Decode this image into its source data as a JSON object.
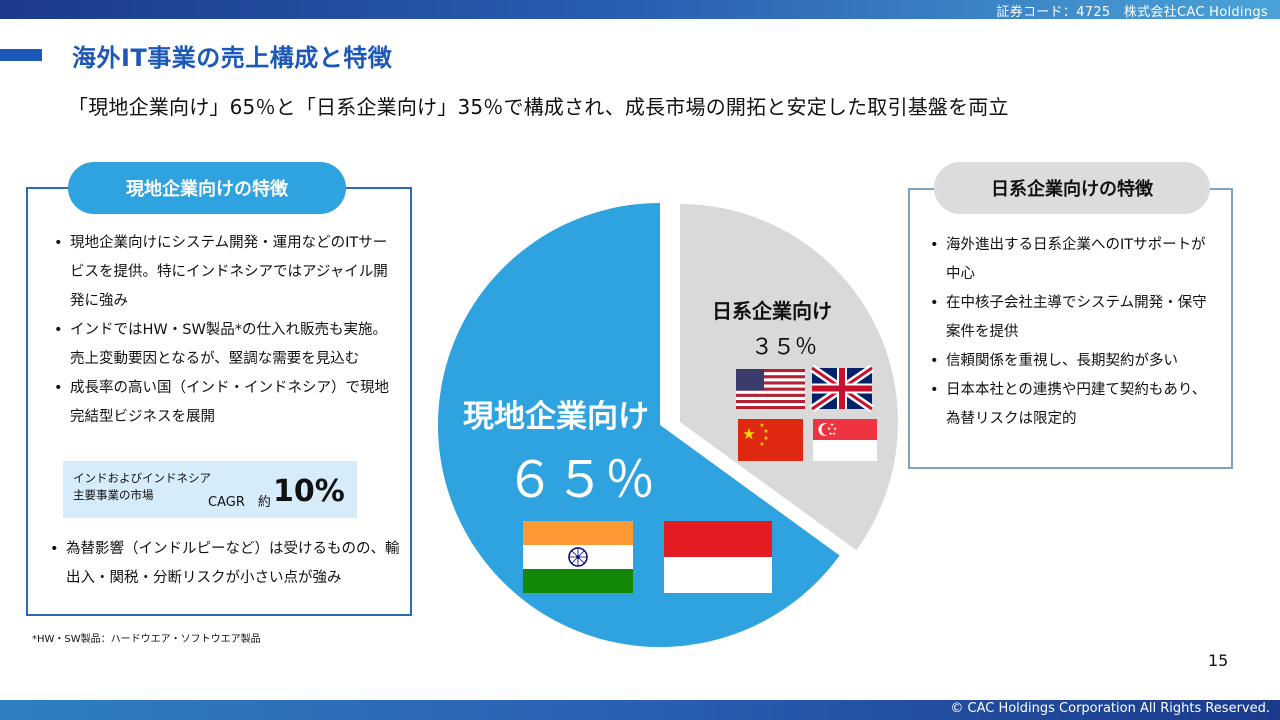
{
  "header": {
    "stock_code": "証券コード：4725　株式会社CAC Holdings"
  },
  "slide": {
    "title": "海外IT事業の売上構成と特徴",
    "subtitle": "「現地企業向け」65％と「日系企業向け」35％で構成され、成長市場の開拓と安定した取引基盤を両立"
  },
  "left_panel": {
    "heading": "現地企業向けの特徴",
    "bullets": [
      "現地企業向けにシステム開発・運用などのITサービスを提供。特にインドネシアではアジャイル開発に強み",
      "インドではHW・SW製品*の仕入れ販売も実施。売上変動要因となるが、堅調な需要を見込む",
      "成長率の高い国（インド・インドネシア）で現地完結型ビジネスを展開"
    ],
    "cagr": {
      "label_line1": "インドおよびインドネシア",
      "label_line2": "主要事業の市場",
      "word": "CAGR　約",
      "value": "10%"
    },
    "bullets_after": [
      "為替影響（インドルピーなど）は受けるものの、輸出入・関税・分断リスクが小さい点が強み"
    ]
  },
  "right_panel": {
    "heading": "日系企業向けの特徴",
    "bullets": [
      "海外進出する日系企業へのITサポートが中心",
      "在中核子会社主導でシステム開発・保守案件を提供",
      "信頼関係を重視し、長期契約が多い",
      "日本本社との連携や円建て契約もあり、為替リスクは限定的"
    ]
  },
  "chart_data": {
    "type": "pie",
    "slices": [
      {
        "label": "現地企業向け",
        "value": 65,
        "value_text": "６５％",
        "color": "#2ea3df",
        "flags": [
          "india-flag",
          "indonesia-flag"
        ]
      },
      {
        "label": "日系企業向け",
        "value": 35,
        "value_text": "３５％",
        "color": "#d9d9d9",
        "flags": [
          "usa-flag",
          "uk-flag",
          "china-flag",
          "singapore-flag"
        ]
      }
    ]
  },
  "footnote": "*HW・SW製品：ハードウエア・ソフトウエア製品",
  "page_number": "15",
  "copyright": "© CAC Holdings Corporation All Rights Reserved."
}
